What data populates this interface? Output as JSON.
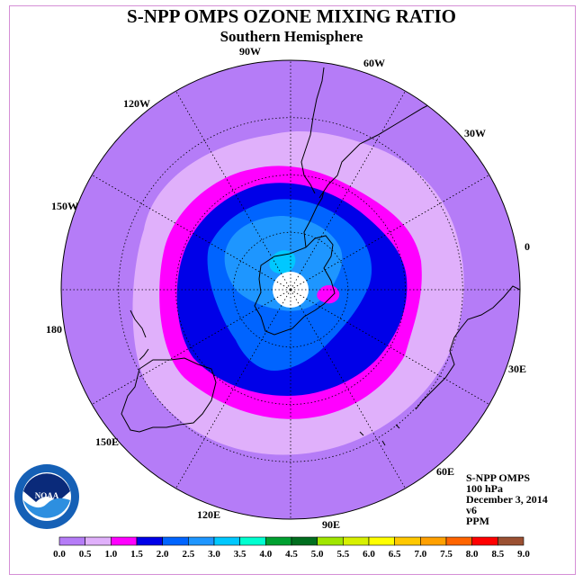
{
  "title": "S-NPP OMPS OZONE MIXING RATIO",
  "subtitle": "Southern Hemisphere",
  "info": {
    "line1": "S-NPP OMPS",
    "line2": "100 hPa",
    "line3": "December 3, 2014",
    "line4": "v6",
    "line5": "PPM"
  },
  "longitude_labels": {
    "lon_90w": "90W",
    "lon_60w": "60W",
    "lon_30w": "30W",
    "lon_0": "0",
    "lon_30e": "30E",
    "lon_60e": "60E",
    "lon_90e": "90E",
    "lon_120e": "120E",
    "lon_150e": "150E",
    "lon_180": "180",
    "lon_150w": "150W",
    "lon_120w": "120W"
  },
  "logo": {
    "name": "NOAA",
    "ring_text": "NATIONAL OCEANIC AND ATMOSPHERIC ADMINISTRATION · U.S. DEPARTMENT OF COMMERCE"
  },
  "colorbar": {
    "tick_labels": [
      "0.0",
      "0.5",
      "1.0",
      "1.5",
      "2.0",
      "2.5",
      "3.0",
      "3.5",
      "4.0",
      "4.5",
      "5.0",
      "5.5",
      "6.0",
      "6.5",
      "7.0",
      "7.5",
      "8.0",
      "8.5",
      "9.0"
    ],
    "colors": [
      "#b57cf7",
      "#e0b0fb",
      "#ff00ff",
      "#0000e8",
      "#0064ff",
      "#1e96ff",
      "#00c8ff",
      "#00ffd0",
      "#00a030",
      "#006e1e",
      "#a0e600",
      "#d7f000",
      "#ffff00",
      "#ffc800",
      "#ffa000",
      "#ff6400",
      "#ff0000",
      "#9b5032"
    ]
  }
}
